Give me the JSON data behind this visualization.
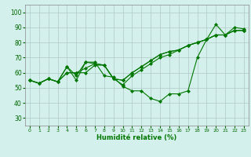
{
  "xlabel": "Humidité relative (%)",
  "xlim": [
    -0.5,
    23.5
  ],
  "ylim": [
    25,
    105
  ],
  "yticks": [
    30,
    40,
    50,
    60,
    70,
    80,
    90,
    100
  ],
  "xticks": [
    0,
    1,
    2,
    3,
    4,
    5,
    6,
    7,
    8,
    9,
    10,
    11,
    12,
    13,
    14,
    15,
    16,
    17,
    18,
    19,
    20,
    21,
    22,
    23
  ],
  "background_color": "#d4f0ec",
  "grid_color": "#b0c8c8",
  "line_color": "#007700",
  "lines": [
    [
      55,
      53,
      56,
      54,
      64,
      55,
      67,
      67,
      58,
      57,
      51,
      48,
      48,
      43,
      41,
      46,
      46,
      48,
      70,
      82,
      92,
      85,
      90,
      89
    ],
    [
      55,
      53,
      56,
      54,
      64,
      58,
      67,
      66,
      65,
      56,
      55,
      60,
      64,
      68,
      72,
      74,
      75,
      78,
      80,
      82,
      85,
      85,
      88,
      88
    ],
    [
      55,
      53,
      56,
      54,
      60,
      60,
      63,
      66,
      65,
      56,
      55,
      60,
      64,
      68,
      72,
      74,
      75,
      78,
      80,
      82,
      85,
      85,
      88,
      88
    ],
    [
      55,
      53,
      56,
      54,
      60,
      60,
      60,
      65,
      65,
      56,
      52,
      58,
      62,
      66,
      70,
      72,
      75,
      78,
      80,
      82,
      85,
      85,
      88,
      88
    ]
  ]
}
